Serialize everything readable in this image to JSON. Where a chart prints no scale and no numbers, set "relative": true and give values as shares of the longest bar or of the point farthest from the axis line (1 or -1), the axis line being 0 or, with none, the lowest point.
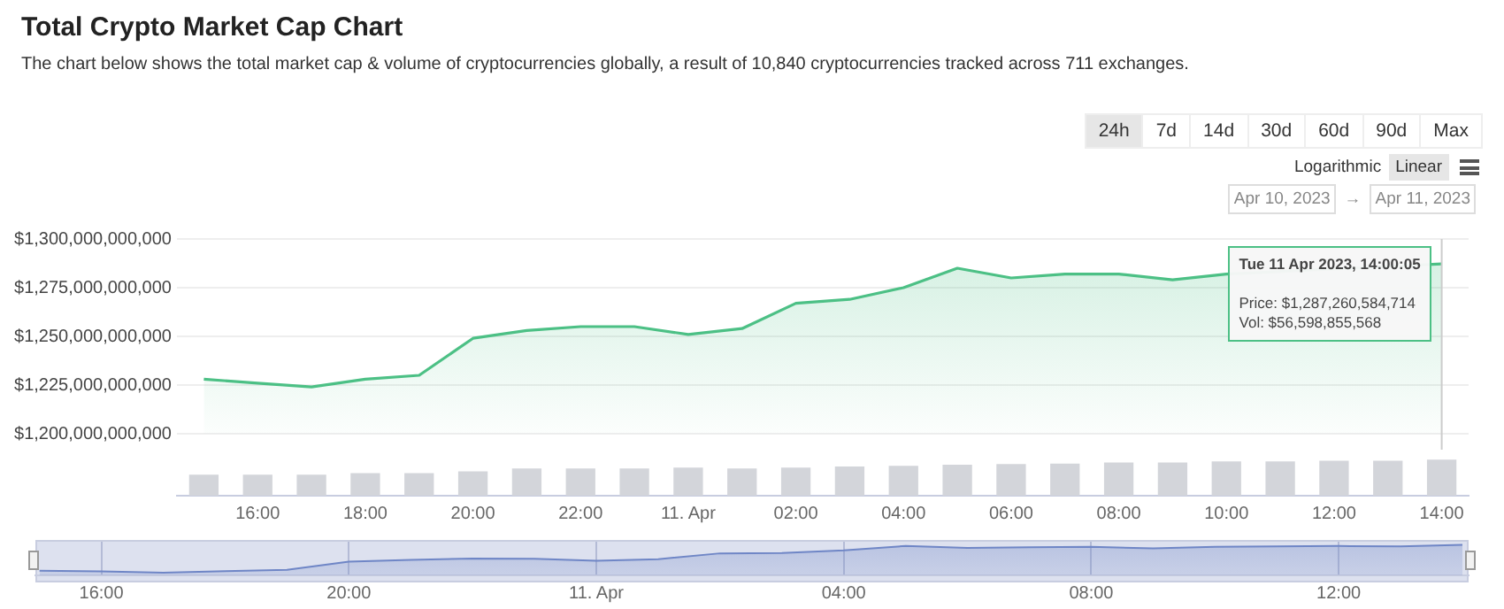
{
  "chart_data": [
    {
      "type": "area",
      "title": "Total Crypto Market Cap Chart",
      "subtitle": "The chart below shows the total market cap & volume of cryptocurrencies globally, a result of 10,840 cryptocurrencies tracked across 711 exchanges.",
      "x": [
        "2023-04-10T15:00",
        "2023-04-10T16:00",
        "2023-04-10T17:00",
        "2023-04-10T18:00",
        "2023-04-10T19:00",
        "2023-04-10T20:00",
        "2023-04-10T21:00",
        "2023-04-10T22:00",
        "2023-04-10T23:00",
        "2023-04-11T00:00",
        "2023-04-11T01:00",
        "2023-04-11T02:00",
        "2023-04-11T03:00",
        "2023-04-11T04:00",
        "2023-04-11T05:00",
        "2023-04-11T06:00",
        "2023-04-11T07:00",
        "2023-04-11T08:00",
        "2023-04-11T09:00",
        "2023-04-11T10:00",
        "2023-04-11T11:00",
        "2023-04-11T12:00",
        "2023-04-11T13:00",
        "2023-04-11T14:00"
      ],
      "series": [
        {
          "color": "#4cc085",
          "values": [
            1228000000000,
            1226000000000,
            1224000000000,
            1228000000000,
            1230000000000,
            1249000000000,
            1253000000000,
            1255000000000,
            1255000000000,
            1251000000000,
            1254000000000,
            1267000000000,
            1269000000000,
            1275000000000,
            1285000000000,
            1280000000000,
            1282000000000,
            1282000000000,
            1279000000000,
            1282000000000,
            null,
            null,
            null,
            1287260584714
          ]
        }
      ],
      "xlim": [
        "2023-04-10T14:30",
        "2023-04-11T14:30"
      ],
      "ylim": [
        1200000000000,
        1300000000000
      ],
      "yticks": [
        {
          "value": 1200000000000,
          "label": "$1,200,000,000,000"
        },
        {
          "value": 1225000000000,
          "label": "$1,225,000,000,000"
        },
        {
          "value": 1250000000000,
          "label": "$1,250,000,000,000"
        },
        {
          "value": 1275000000000,
          "label": "$1,275,000,000,000"
        },
        {
          "value": 1300000000000,
          "label": "$1,300,000,000,000"
        }
      ],
      "grid": "y",
      "tick_labels": "y",
      "ref_lines": [
        {
          "axis": "x",
          "value": "2023-04-11T14:00",
          "color": "#cccccc"
        }
      ],
      "annotations": [
        {
          "text": "Tue 11 Apr 2023, 14:00:05",
          "x": "2023-04-11T14:00",
          "y": 1287260584714
        },
        "24h",
        "7d",
        "14d",
        "30d",
        "60d",
        "90d",
        "Max",
        "Logarithmic",
        "Linear",
        "Apr 10, 2023",
        "→",
        "Apr 11, 2023",
        "Price: $1,287,260,584,714",
        "Vol: $56,598,855,568"
      ]
    },
    {
      "type": "bar",
      "relative": true,
      "x": [
        "2023-04-10T15:00",
        "2023-04-10T16:00",
        "2023-04-10T17:00",
        "2023-04-10T18:00",
        "2023-04-10T19:00",
        "2023-04-10T20:00",
        "2023-04-10T21:00",
        "2023-04-10T22:00",
        "2023-04-10T23:00",
        "2023-04-11T00:00",
        "2023-04-11T01:00",
        "2023-04-11T02:00",
        "2023-04-11T03:00",
        "2023-04-11T04:00",
        "2023-04-11T05:00",
        "2023-04-11T06:00",
        "2023-04-11T07:00",
        "2023-04-11T08:00",
        "2023-04-11T09:00",
        "2023-04-11T10:00",
        "2023-04-11T11:00",
        "2023-04-11T12:00",
        "2023-04-11T13:00",
        "2023-04-11T14:00"
      ],
      "values": [
        0.58,
        0.58,
        0.58,
        0.62,
        0.62,
        0.67,
        0.75,
        0.75,
        0.75,
        0.78,
        0.75,
        0.78,
        0.81,
        0.83,
        0.86,
        0.88,
        0.89,
        0.92,
        0.92,
        0.95,
        0.95,
        0.97,
        0.97,
        1
      ],
      "color": "#d3d5da",
      "xlim": [
        "2023-04-10T14:30",
        "2023-04-11T14:30"
      ],
      "xticks": [
        {
          "value": "2023-04-10T16:00",
          "label": "16:00"
        },
        {
          "value": "2023-04-10T18:00",
          "label": "18:00"
        },
        {
          "value": "2023-04-10T20:00",
          "label": "20:00"
        },
        {
          "value": "2023-04-10T22:00",
          "label": "22:00"
        },
        {
          "value": "2023-04-11T00:00",
          "label": "11. Apr"
        },
        {
          "value": "2023-04-11T02:00",
          "label": "02:00"
        },
        {
          "value": "2023-04-11T04:00",
          "label": "04:00"
        },
        {
          "value": "2023-04-11T06:00",
          "label": "06:00"
        },
        {
          "value": "2023-04-11T08:00",
          "label": "08:00"
        },
        {
          "value": "2023-04-11T10:00",
          "label": "10:00"
        },
        {
          "value": "2023-04-11T12:00",
          "label": "12:00"
        },
        {
          "value": "2023-04-11T14:00",
          "label": "14:00"
        }
      ],
      "tick_labels": "x"
    },
    {
      "type": "area",
      "relative": true,
      "x": [
        "2023-04-10T15:00",
        "2023-04-10T16:00",
        "2023-04-10T17:00",
        "2023-04-10T18:00",
        "2023-04-10T19:00",
        "2023-04-10T20:00",
        "2023-04-10T21:00",
        "2023-04-10T22:00",
        "2023-04-10T23:00",
        "2023-04-11T00:00",
        "2023-04-11T01:00",
        "2023-04-11T02:00",
        "2023-04-11T03:00",
        "2023-04-11T04:00",
        "2023-04-11T05:00",
        "2023-04-11T06:00",
        "2023-04-11T07:00",
        "2023-04-11T08:00",
        "2023-04-11T09:00",
        "2023-04-11T10:00",
        "2023-04-11T11:00",
        "2023-04-11T12:00",
        "2023-04-11T13:00",
        "2023-04-11T14:00"
      ],
      "values": [
        0.15,
        0.13,
        0.09,
        0.14,
        0.18,
        0.45,
        0.51,
        0.55,
        0.54,
        0.48,
        0.53,
        0.72,
        0.73,
        0.82,
        0.96,
        0.9,
        0.92,
        0.93,
        0.88,
        0.93,
        0.95,
        0.96,
        0.95,
        1
      ],
      "color": "#6f86c6",
      "xlim": [
        "2023-04-10T14:56",
        "2023-04-11T14:06"
      ],
      "xticks": [
        {
          "value": "2023-04-10T16:00",
          "label": "16:00"
        },
        {
          "value": "2023-04-10T20:00",
          "label": "20:00"
        },
        {
          "value": "2023-04-11T00:00",
          "label": "11. Apr"
        },
        {
          "value": "2023-04-11T04:00",
          "label": "04:00"
        },
        {
          "value": "2023-04-11T08:00",
          "label": "08:00"
        },
        {
          "value": "2023-04-11T12:00",
          "label": "12:00"
        }
      ],
      "grid": "x",
      "tick_labels": "x"
    }
  ]
}
